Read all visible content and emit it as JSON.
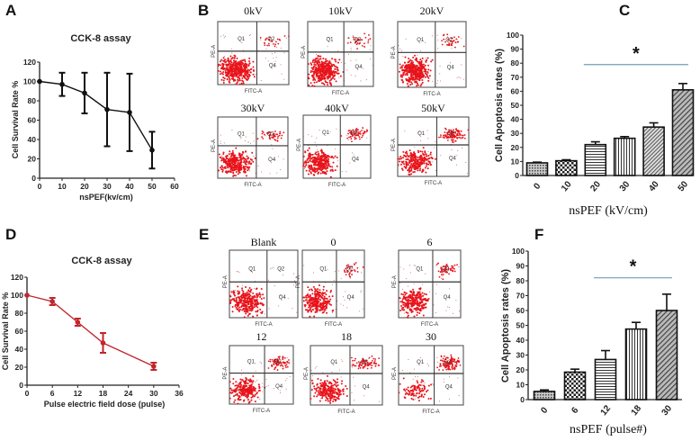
{
  "figure": {
    "panel_letters": [
      "A",
      "B",
      "C",
      "D",
      "E",
      "F"
    ],
    "flow_B": {
      "titles": [
        "0kV",
        "10kV",
        "20kV",
        "30kV",
        "40kV",
        "50kV"
      ],
      "x_axis_label": "FITC-A",
      "y_axis_label": "PE-A",
      "quadrants": [
        "Q1",
        "Q2",
        "Q4"
      ]
    },
    "flow_E": {
      "titles": [
        "Blank",
        "0",
        "6",
        "12",
        "18",
        "30"
      ],
      "x_axis_label": "FITC-A",
      "y_axis_label": "PE-A",
      "quadrants": [
        "Q1",
        "Q2",
        "Q4"
      ]
    },
    "dot_color": "#e8141b"
  },
  "chart_data": [
    {
      "panel": "A",
      "type": "line",
      "title": "CCK-8 assay",
      "xlabel": "nsPEF(kv/cm)",
      "ylabel": "Cell Survival Rate %",
      "x": [
        0,
        10,
        20,
        30,
        40,
        50
      ],
      "y": [
        100,
        97,
        88,
        71,
        68,
        29
      ],
      "error": [
        0,
        12,
        21,
        38,
        40,
        19
      ],
      "xlim": [
        0,
        60
      ],
      "ylim": [
        0,
        120
      ],
      "xticks": [
        0,
        10,
        20,
        30,
        40,
        50,
        60
      ],
      "yticks": [
        0,
        20,
        40,
        60,
        80,
        100,
        120
      ],
      "color": "#111111",
      "grid": false
    },
    {
      "panel": "C",
      "type": "bar",
      "xlabel": "nsPEF (kV/cm)",
      "ylabel": "Cell Apoptosis rates (%)",
      "categories": [
        "0",
        "10",
        "20",
        "30",
        "40",
        "50"
      ],
      "values": [
        9,
        10.5,
        22,
        26.5,
        34.5,
        61
      ],
      "error": [
        0.5,
        0.7,
        2,
        1.2,
        3,
        4.5
      ],
      "ylim": [
        0,
        100
      ],
      "yticks": [
        0,
        10,
        20,
        30,
        40,
        50,
        60,
        70,
        80,
        90,
        100
      ],
      "patterns": [
        "dense-dots",
        "checker",
        "horizontal-lines",
        "vertical-lines",
        "fine-diagonal",
        "diagonal"
      ],
      "annotation": {
        "text": "*",
        "from": "20",
        "to": "50",
        "line_color": "#6f9fb5"
      },
      "grid": false
    },
    {
      "panel": "D",
      "type": "line",
      "title": "CCK-8 assay",
      "xlabel": "Pulse electric field dose (pulse)",
      "ylabel": "Cell Survival Rate %",
      "x": [
        0,
        6,
        12,
        18,
        30
      ],
      "y": [
        100,
        93,
        70,
        47,
        21
      ],
      "error": [
        0,
        4,
        4,
        11,
        4
      ],
      "xlim": [
        0,
        36
      ],
      "ylim": [
        0,
        120
      ],
      "xticks": [
        0,
        6,
        12,
        18,
        24,
        30,
        36
      ],
      "yticks": [
        0,
        20,
        40,
        60,
        80,
        100,
        120
      ],
      "color": "#c0272d",
      "grid": false
    },
    {
      "panel": "F",
      "type": "bar",
      "xlabel": "nsPEF (pulse#)",
      "ylabel": "Cell Apoptosis rates (%)",
      "categories": [
        "0",
        "6",
        "12",
        "18",
        "30"
      ],
      "values": [
        5.5,
        18.5,
        27,
        47.5,
        60
      ],
      "error": [
        1,
        2,
        6,
        4.5,
        11
      ],
      "ylim": [
        0,
        100
      ],
      "yticks": [
        0,
        10,
        20,
        30,
        40,
        50,
        60,
        70,
        80,
        90,
        100
      ],
      "patterns": [
        "dense-dots",
        "checker",
        "horizontal-lines",
        "vertical-lines",
        "diagonal"
      ],
      "annotation": {
        "text": "*",
        "from": "12",
        "to": "30",
        "line_color": "#6f9fb5"
      },
      "grid": false
    }
  ]
}
